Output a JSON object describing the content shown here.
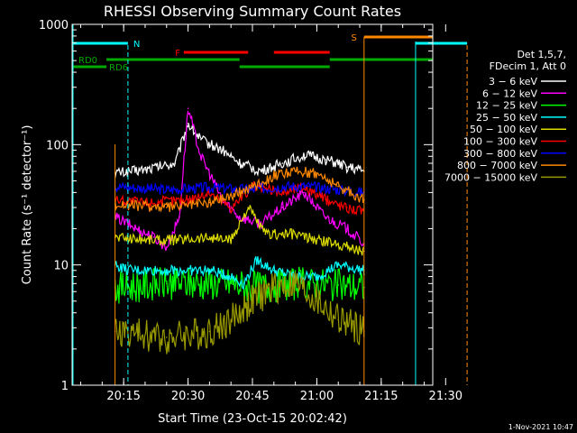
{
  "chart_data": {
    "type": "line",
    "title": "RHESSI Observing Summary Count Rates",
    "xlabel": "Start Time (23-Oct-15 20:02:42)",
    "ylabel": "Count Rate (s⁻¹ detector⁻¹)",
    "yscale": "log",
    "ylim": [
      1,
      1000
    ],
    "xlim_minutes": [
      20.05,
      21.45
    ],
    "x_ticks": [
      "20:15",
      "20:30",
      "20:45",
      "21:00",
      "21:15",
      "21:30"
    ],
    "y_ticks": [
      "1",
      "10",
      "100",
      "1000"
    ],
    "legend": {
      "placement": "right",
      "header": [
        "Det 1,5,7,",
        "FDecim 1, Att 0"
      ],
      "entries": [
        {
          "label": "3 − 6 keV",
          "color": "#ffffff"
        },
        {
          "label": "6 − 12 keV",
          "color": "#ff00ff"
        },
        {
          "label": "12 − 25 keV",
          "color": "#00ff00"
        },
        {
          "label": "25 − 50 keV",
          "color": "#00ffff"
        },
        {
          "label": "50 − 100 keV",
          "color": "#dddd00"
        },
        {
          "label": "100 − 300 keV",
          "color": "#ff0000"
        },
        {
          "label": "300 − 800 keV",
          "color": "#0000ff"
        },
        {
          "label": "800 − 7000 keV",
          "color": "#ff8800"
        },
        {
          "label": "7000 − 15000 keV",
          "color": "#999900"
        }
      ]
    },
    "series": [
      {
        "color": "#ffffff",
        "x": [
          "20:13",
          "20:20",
          "20:27",
          "20:30",
          "20:33",
          "20:38",
          "20:42",
          "20:47",
          "20:52",
          "20:57",
          "21:02",
          "21:07",
          "21:11"
        ],
        "y": [
          58,
          62,
          70,
          150,
          110,
          90,
          70,
          60,
          70,
          82,
          75,
          65,
          60
        ]
      },
      {
        "color": "#ff00ff",
        "x": [
          "20:13",
          "20:18",
          "20:22",
          "20:25",
          "20:28",
          "20:30",
          "20:33",
          "20:38",
          "20:42",
          "20:47",
          "20:52",
          "20:57",
          "21:02",
          "21:07",
          "21:11"
        ],
        "y": [
          25,
          20,
          17,
          14,
          25,
          200,
          80,
          35,
          25,
          22,
          30,
          40,
          25,
          20,
          15
        ]
      },
      {
        "color": "#00ff00",
        "x": [
          "20:13",
          "20:25",
          "20:40",
          "20:45",
          "20:55",
          "21:00",
          "21:05",
          "21:11"
        ],
        "y": [
          6.5,
          7,
          7,
          6.5,
          7,
          7,
          6.8,
          6.5
        ]
      },
      {
        "color": "#00ffff",
        "x": [
          "20:13",
          "20:16",
          "20:25",
          "20:35",
          "20:40",
          "20:43",
          "20:46",
          "20:50",
          "20:55",
          "21:00",
          "21:05",
          "21:11"
        ],
        "y": [
          10,
          9,
          9,
          9,
          8,
          7,
          11,
          9,
          8,
          8,
          10,
          9
        ]
      },
      {
        "color": "#dddd00",
        "x": [
          "20:13",
          "20:25",
          "20:35",
          "20:40",
          "20:44",
          "20:48",
          "20:55",
          "21:00",
          "21:05",
          "21:11"
        ],
        "y": [
          17,
          16,
          17,
          16,
          30,
          18,
          18,
          16,
          15,
          13
        ]
      },
      {
        "color": "#ff0000",
        "x": [
          "20:13",
          "20:20",
          "20:30",
          "20:35",
          "20:40",
          "20:45",
          "20:52",
          "20:57",
          "21:02",
          "21:07",
          "21:11"
        ],
        "y": [
          35,
          33,
          35,
          40,
          30,
          45,
          40,
          45,
          35,
          30,
          28
        ]
      },
      {
        "color": "#0000ff",
        "x": [
          "20:13",
          "20:25",
          "20:35",
          "20:45",
          "20:52",
          "20:58",
          "21:03",
          "21:11"
        ],
        "y": [
          45,
          42,
          44,
          42,
          45,
          45,
          43,
          40
        ]
      },
      {
        "color": "#ff8800",
        "x": [
          "20:13",
          "20:25",
          "20:35",
          "20:42",
          "20:50",
          "20:55",
          "21:00",
          "21:05",
          "21:11"
        ],
        "y": [
          32,
          30,
          33,
          40,
          55,
          60,
          58,
          45,
          35
        ]
      },
      {
        "color": "#999900",
        "x": [
          "20:13",
          "20:25",
          "20:35",
          "20:40",
          "20:45",
          "20:50",
          "20:55",
          "21:00",
          "21:05",
          "21:11"
        ],
        "y": [
          2.8,
          2.5,
          2.8,
          3.5,
          5,
          6.5,
          7,
          5,
          3.5,
          2.8
        ]
      }
    ],
    "annotations": [
      {
        "label": "N",
        "color": "#00ffff"
      },
      {
        "label": "F",
        "color": "#ff0000"
      },
      {
        "label": "S",
        "color": "#ff8800"
      },
      {
        "label": "RD0",
        "color": "#00aa00"
      },
      {
        "label": "RD6",
        "color": "#00aa00"
      }
    ],
    "footer_timestamp": "1-Nov-2021 10:47"
  }
}
